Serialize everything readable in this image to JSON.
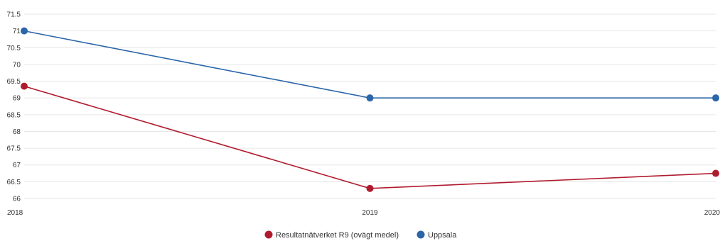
{
  "chart_data": {
    "type": "line",
    "title": "",
    "xlabel": "",
    "ylabel": "",
    "x": [
      "2018",
      "2019",
      "2020"
    ],
    "ylim": [
      66,
      71.5
    ],
    "yticks": [
      "66",
      "66.5",
      "67",
      "67.5",
      "68",
      "68.5",
      "69",
      "69.5",
      "70",
      "70.5",
      "71",
      "71.5"
    ],
    "grid": true,
    "legend_position": "bottom-center",
    "series": [
      {
        "name": "Resultatnätverket R9 (ovägt medel)",
        "color": "#b01c2e",
        "values": [
          69.35,
          66.3,
          66.75
        ]
      },
      {
        "name": "Uppsala",
        "color": "#2b66a8",
        "values": [
          71.0,
          69.0,
          69.0
        ]
      }
    ]
  }
}
